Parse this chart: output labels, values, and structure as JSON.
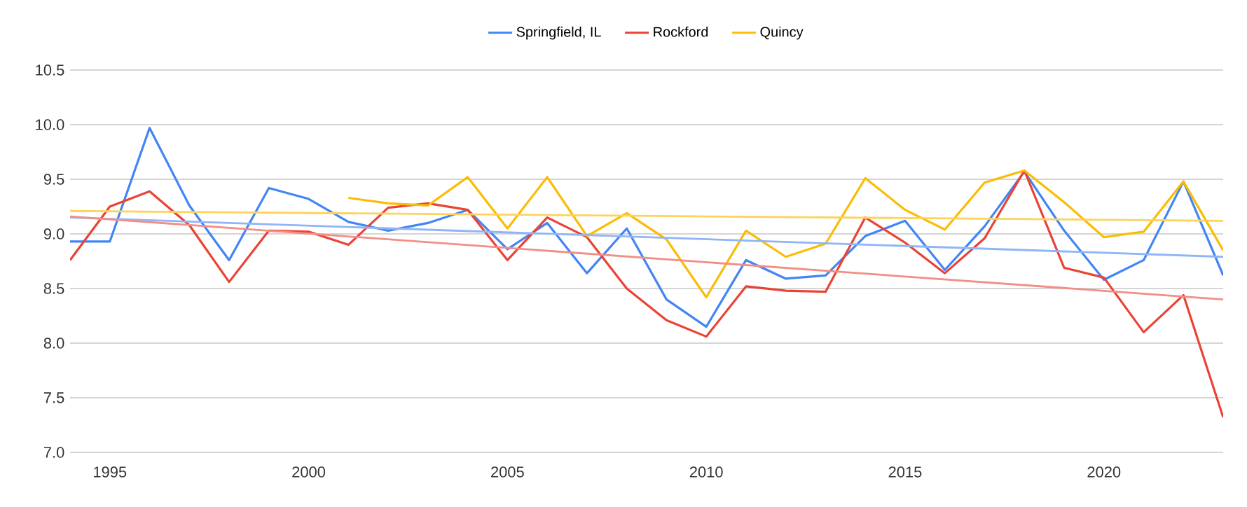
{
  "chart_data": {
    "type": "line",
    "xlim": [
      1994,
      2023
    ],
    "ylim": [
      7.0,
      10.5
    ],
    "xticks": [
      1995,
      2000,
      2005,
      2010,
      2015,
      2020
    ],
    "yticks": [
      {
        "value": 7.0,
        "label": "7.0"
      },
      {
        "value": 7.5,
        "label": "7.5"
      },
      {
        "value": 8.0,
        "label": "8.0"
      },
      {
        "value": 8.5,
        "label": "8.5"
      },
      {
        "value": 9.0,
        "label": "9.0"
      },
      {
        "value": 9.5,
        "label": "9.5"
      },
      {
        "value": 10.0,
        "label": "10.0"
      },
      {
        "value": 10.5,
        "label": "10.5"
      }
    ],
    "x": [
      1994,
      1995,
      1996,
      1997,
      1998,
      1999,
      2000,
      2001,
      2002,
      2003,
      2004,
      2005,
      2006,
      2007,
      2008,
      2009,
      2010,
      2011,
      2012,
      2013,
      2014,
      2015,
      2016,
      2017,
      2018,
      2019,
      2020,
      2021,
      2022,
      2023
    ],
    "grid": "y",
    "legend": "top",
    "marker": "none",
    "line_style": "solid",
    "series": [
      {
        "name": "Springfield, IL",
        "color": "#4285f4",
        "values": [
          8.93,
          8.93,
          9.97,
          9.26,
          8.76,
          9.42,
          9.32,
          9.11,
          9.03,
          9.1,
          9.22,
          8.86,
          9.1,
          8.64,
          9.05,
          8.4,
          8.15,
          8.76,
          8.59,
          8.62,
          8.98,
          9.12,
          8.67,
          9.07,
          9.57,
          9.03,
          8.58,
          8.76,
          9.48,
          8.62
        ]
      },
      {
        "name": "Rockford",
        "color": "#ea4335",
        "values": [
          8.76,
          9.25,
          9.39,
          9.08,
          8.56,
          9.03,
          9.02,
          8.9,
          9.24,
          9.28,
          9.22,
          8.76,
          9.15,
          8.97,
          8.5,
          8.21,
          8.06,
          8.52,
          8.48,
          8.47,
          9.15,
          8.92,
          8.64,
          8.96,
          9.58,
          8.69,
          8.6,
          8.1,
          8.44,
          7.32
        ]
      },
      {
        "name": "Quincy",
        "color": "#fbbc04",
        "x": [
          2001,
          2002,
          2003,
          2004,
          2005,
          2006,
          2007,
          2008,
          2009,
          2010,
          2011,
          2012,
          2013,
          2014,
          2015,
          2016,
          2017,
          2018,
          2019,
          2020,
          2021,
          2022,
          2023
        ],
        "values": [
          9.33,
          9.28,
          9.26,
          9.52,
          9.05,
          9.52,
          8.98,
          9.19,
          8.95,
          8.42,
          9.03,
          8.79,
          8.91,
          9.51,
          9.22,
          9.04,
          9.47,
          9.58,
          9.29,
          8.97,
          9.02,
          9.48,
          8.85
        ]
      },
      {
        "type": "line",
        "color": "#8fb5f7",
        "x": [
          1994,
          2023
        ],
        "values": [
          9.15,
          8.79
        ]
      },
      {
        "type": "line",
        "color": "#f28e86",
        "x": [
          1994,
          2023
        ],
        "values": [
          9.16,
          8.4
        ]
      },
      {
        "type": "line",
        "color": "#fdd35e",
        "x": [
          1994,
          2023
        ],
        "values": [
          9.21,
          9.12
        ]
      }
    ]
  }
}
